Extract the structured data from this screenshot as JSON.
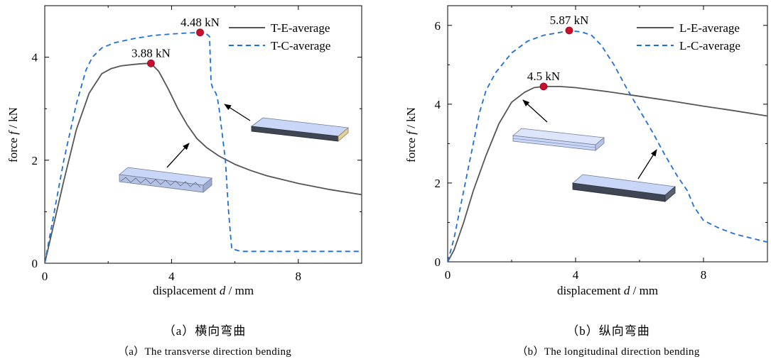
{
  "chart_data": [
    {
      "type": "line",
      "xlabel": "displacement",
      "xlabel_var": "d",
      "xlabel_unit": " / mm",
      "ylabel": "force",
      "ylabel_var": "f",
      "ylabel_unit": " / kN",
      "xlim": [
        0,
        10
      ],
      "ylim": [
        0,
        5
      ],
      "xticks": [
        0,
        4,
        8
      ],
      "yticks": [
        0,
        2,
        4
      ],
      "grid": false,
      "legend_position": "top-right",
      "series": [
        {
          "name": "T-E-average",
          "color": "#555555",
          "style": "solid",
          "x": [
            0,
            0.3,
            0.6,
            1.0,
            1.4,
            1.8,
            2.1,
            2.4,
            2.8,
            3.1,
            3.35,
            3.6,
            3.9,
            4.2,
            4.5,
            4.8,
            5.1,
            5.5,
            6.0,
            6.5,
            7.0,
            8.0,
            9.0,
            10.0
          ],
          "y": [
            0,
            0.8,
            1.6,
            2.6,
            3.3,
            3.68,
            3.78,
            3.83,
            3.86,
            3.875,
            3.88,
            3.72,
            3.38,
            3.0,
            2.68,
            2.42,
            2.25,
            2.08,
            1.92,
            1.8,
            1.7,
            1.55,
            1.43,
            1.33
          ]
        },
        {
          "name": "T-C-average",
          "color": "#1e6fd9",
          "style": "dashed",
          "x": [
            0,
            0.3,
            0.6,
            1.0,
            1.3,
            1.5,
            1.8,
            2.2,
            2.8,
            3.4,
            4.0,
            4.5,
            4.9,
            5.05,
            5.2,
            5.25,
            5.3,
            5.4,
            5.45,
            5.5,
            5.6,
            5.7,
            5.75,
            5.8,
            5.9,
            6.2,
            8.0,
            10.0
          ],
          "y": [
            0,
            1.0,
            2.0,
            3.1,
            3.75,
            4.0,
            4.18,
            4.28,
            4.36,
            4.42,
            4.45,
            4.47,
            4.48,
            4.48,
            4.4,
            3.5,
            3.4,
            3.3,
            3.2,
            3.0,
            2.5,
            2.0,
            1.5,
            1.0,
            0.28,
            0.23,
            0.23,
            0.23
          ]
        }
      ],
      "annotations": [
        {
          "text": "3.88 kN",
          "x": 3.35,
          "y": 3.88
        },
        {
          "text": "4.48 kN",
          "x": 5.05,
          "y": 4.52
        }
      ]
    },
    {
      "type": "line",
      "xlabel": "displacement",
      "xlabel_var": "d",
      "xlabel_unit": " / mm",
      "ylabel": "force",
      "ylabel_var": "f",
      "ylabel_unit": " / kN",
      "xlim": [
        0,
        10
      ],
      "ylim": [
        0,
        6.5
      ],
      "xticks": [
        0,
        4,
        8
      ],
      "yticks": [
        0,
        2,
        4,
        6
      ],
      "grid": false,
      "legend_position": "top-right",
      "series": [
        {
          "name": "L-E-average",
          "color": "#555555",
          "style": "solid",
          "x": [
            0,
            0.2,
            0.5,
            0.8,
            1.2,
            1.6,
            2.0,
            2.4,
            2.7,
            3.0,
            3.5,
            4.0,
            5.0,
            6.0,
            7.0,
            8.0,
            9.0,
            10.0
          ],
          "y": [
            0,
            0.3,
            1.0,
            1.8,
            2.7,
            3.5,
            4.05,
            4.3,
            4.42,
            4.45,
            4.45,
            4.42,
            4.32,
            4.2,
            4.08,
            3.95,
            3.83,
            3.7
          ],
          "noise": false
        },
        {
          "name": "L-C-average",
          "color": "#1e6fd9",
          "style": "dashed",
          "x": [
            0,
            0.2,
            0.5,
            0.8,
            1.0,
            1.2,
            1.5,
            2.0,
            2.5,
            3.0,
            3.5,
            3.8,
            4.2,
            4.5,
            4.8,
            5.2,
            5.6,
            6.0,
            6.4,
            6.8,
            7.2,
            7.5,
            7.7,
            8.0,
            8.5,
            9.0,
            9.5,
            10.0
          ],
          "y": [
            0,
            0.6,
            1.8,
            3.0,
            3.8,
            4.35,
            4.8,
            5.3,
            5.6,
            5.75,
            5.82,
            5.87,
            5.83,
            5.75,
            5.5,
            5.0,
            4.4,
            3.85,
            3.3,
            2.7,
            2.15,
            1.8,
            1.4,
            1.05,
            0.85,
            0.7,
            0.6,
            0.5
          ]
        }
      ],
      "annotations": [
        {
          "text": "4.5 kN",
          "x": 2.65,
          "y": 4.4
        },
        {
          "text": "5.87 kN",
          "x": 3.7,
          "y": 5.87
        }
      ]
    }
  ],
  "captions": {
    "a_cn": "（a）横向弯曲",
    "a_en": "（a）The transverse direction bending",
    "b_cn": "（b）纵向弯曲",
    "b_en": "（b）The longitudinal direction bending"
  }
}
